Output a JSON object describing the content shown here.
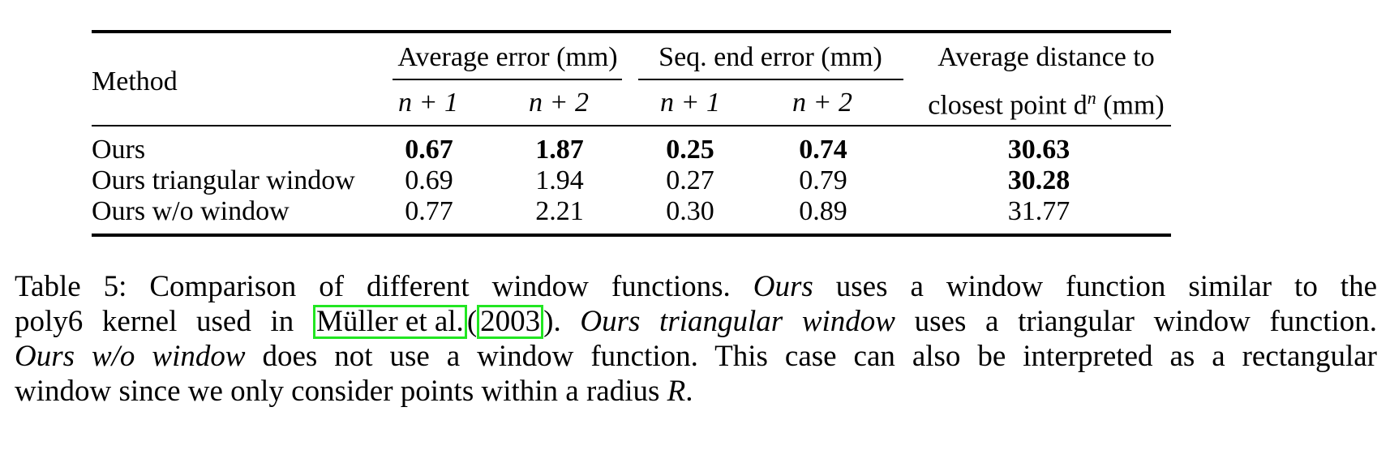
{
  "table": {
    "header": {
      "method": "Method",
      "avg_error_group": "Average error (mm)",
      "seq_end_group": "Seq. end error (mm)",
      "dist_group_line1": "Average distance to",
      "dist_group_line2": "closest point d",
      "dist_group_sup": "n",
      "dist_group_unit": "(mm)",
      "sub_n1": "n + 1",
      "sub_n2": "n + 2"
    },
    "rows": [
      {
        "method": "Ours",
        "avg_n1": "0.67",
        "avg_n2": "1.87",
        "seq_n1": "0.25",
        "seq_n2": "0.74",
        "dist": "30.63"
      },
      {
        "method": "Ours triangular window",
        "avg_n1": "0.69",
        "avg_n2": "1.94",
        "seq_n1": "0.27",
        "seq_n2": "0.79",
        "dist": "30.28"
      },
      {
        "method": "Ours w/o window",
        "avg_n1": "0.77",
        "avg_n2": "2.21",
        "seq_n1": "0.30",
        "seq_n2": "0.89",
        "dist": "31.77"
      }
    ]
  },
  "caption": {
    "label": "Table 5: Comparison of different window functions.",
    "ours_italic": "Ours",
    "part1": "uses a window function similar to the",
    "part2": "poly6 kernel used in",
    "cite_author": "Müller et al.",
    "cite_open": "(",
    "cite_year": "2003",
    "cite_close": ").",
    "tri_italic": "Ours triangular window",
    "part3": "uses a triangular window function.",
    "wo_italic": "Ours w/o window",
    "part4": "does not use a window function. This case can also be interpreted as a rectangular",
    "part5": "window since we only consider points within a radius",
    "radius": "R",
    "end": "."
  },
  "colors": {
    "citation_box": "#22e622"
  }
}
